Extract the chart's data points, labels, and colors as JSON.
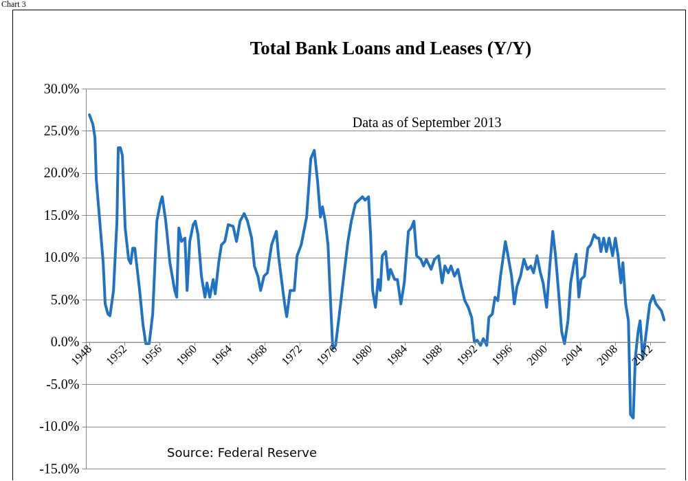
{
  "chart_data": {
    "type": "line",
    "title": "Total Bank Loans and Leases  (Y/Y)",
    "annotations": [
      "Chart 3",
      "Data as of September  2013",
      "Source: Federal Reserve"
    ],
    "x": [
      1948.0,
      1948.39,
      1948.63,
      1948.78,
      1949.18,
      1949.57,
      1949.8,
      1950.12,
      1950.35,
      1950.75,
      1951.14,
      1951.29,
      1951.53,
      1951.76,
      1952.08,
      1952.47,
      1952.71,
      1952.94,
      1953.18,
      1953.41,
      1953.73,
      1954.12,
      1954.43,
      1954.82,
      1955.22,
      1955.69,
      1956.08,
      1956.31,
      1956.71,
      1957.18,
      1957.73,
      1957.96,
      1958.2,
      1958.51,
      1958.9,
      1959.14,
      1959.45,
      1959.84,
      1960.08,
      1960.39,
      1960.78,
      1961.18,
      1961.41,
      1961.73,
      1962.12,
      1962.35,
      1962.75,
      1963.06,
      1963.45,
      1963.84,
      1964.39,
      1964.78,
      1965.18,
      1965.65,
      1966.04,
      1966.51,
      1966.82,
      1967.22,
      1967.53,
      1967.92,
      1968.31,
      1968.78,
      1969.33,
      1969.57,
      1969.96,
      1970.27,
      1970.51,
      1970.9,
      1971.37,
      1971.69,
      1972.16,
      1972.78,
      1973.25,
      1973.65,
      1974.04,
      1974.35,
      1974.59,
      1974.9,
      1975.22,
      1975.45,
      1975.76,
      1976.08,
      1976.47,
      1977.02,
      1977.49,
      1977.88,
      1978.35,
      1978.75,
      1979.14,
      1979.45,
      1979.84,
      1980.08,
      1980.31,
      1980.63,
      1980.94,
      1981.18,
      1981.41,
      1981.8,
      1982.12,
      1982.35,
      1982.82,
      1983.14,
      1983.53,
      1983.92,
      1984.39,
      1984.71,
      1985.02,
      1985.33,
      1985.8,
      1986.12,
      1986.43,
      1986.98,
      1987.37,
      1987.84,
      1988.24,
      1988.55,
      1988.94,
      1989.25,
      1989.65,
      1990.04,
      1990.43,
      1990.82,
      1991.22,
      1991.61,
      1991.92,
      1992.24,
      1992.63,
      1992.94,
      1993.33,
      1993.57,
      1993.96,
      1994.27,
      1994.59,
      1994.9,
      1995.45,
      1995.76,
      1996.16,
      1996.47,
      1996.78,
      1997.18,
      1997.57,
      1997.96,
      1998.35,
      1998.67,
      1999.06,
      1999.45,
      1999.76,
      2000.16,
      2000.55,
      2000.86,
      2001.18,
      2001.57,
      2001.88,
      2002.2,
      2002.59,
      2002.9,
      2003.29,
      2003.53,
      2003.84,
      2004.08,
      2004.47,
      2004.86,
      2005.18,
      2005.57,
      2005.88,
      2006.12,
      2006.35,
      2006.67,
      2006.98,
      2007.29,
      2007.69,
      2008.0,
      2008.31,
      2008.63,
      2008.86,
      2009.18,
      2009.49,
      2009.73,
      2010.04,
      2010.27,
      2010.59,
      2010.82,
      2011.14,
      2011.53,
      2011.92,
      2012.31,
      2012.63,
      2012.94,
      2013.25,
      2013.57
    ],
    "series": [
      {
        "color": "#1f72c4",
        "values": [
          26.9,
          25.8,
          24.2,
          19.3,
          14.3,
          9.4,
          4.5,
          3.3,
          3.1,
          6.1,
          14.3,
          23.0,
          23.0,
          22.1,
          13.5,
          9.8,
          9.3,
          11.1,
          11.1,
          9.0,
          6.1,
          2.0,
          -0.2,
          -0.2,
          3.3,
          14.3,
          16.4,
          17.2,
          14.3,
          9.4,
          6.1,
          5.3,
          13.5,
          11.9,
          12.3,
          6.1,
          11.9,
          13.9,
          14.3,
          12.7,
          7.8,
          5.3,
          7.0,
          5.3,
          7.4,
          5.7,
          9.4,
          11.5,
          11.9,
          13.9,
          13.7,
          11.9,
          14.3,
          15.2,
          14.3,
          12.3,
          9.0,
          7.8,
          6.1,
          7.8,
          8.2,
          11.5,
          13.1,
          10.2,
          7.0,
          4.5,
          3.0,
          6.1,
          6.1,
          10.2,
          11.5,
          14.8,
          21.7,
          22.7,
          18.9,
          14.8,
          16.0,
          14.3,
          11.5,
          6.1,
          -0.8,
          -0.4,
          2.9,
          7.8,
          11.9,
          14.3,
          16.4,
          16.8,
          17.2,
          16.8,
          17.2,
          12.7,
          6.1,
          4.1,
          7.4,
          6.1,
          10.2,
          10.7,
          7.4,
          8.6,
          7.4,
          7.4,
          4.5,
          7.0,
          13.1,
          13.5,
          14.3,
          10.2,
          9.8,
          9.0,
          9.8,
          8.6,
          9.8,
          10.2,
          7.0,
          9.0,
          8.2,
          9.0,
          7.8,
          8.6,
          6.6,
          4.9,
          4.1,
          2.9,
          0.0,
          0.2,
          -0.4,
          0.4,
          -0.4,
          2.9,
          3.3,
          5.3,
          4.9,
          7.8,
          11.9,
          10.2,
          7.8,
          4.5,
          6.6,
          7.8,
          9.8,
          8.6,
          9.0,
          8.2,
          10.2,
          8.2,
          7.0,
          4.1,
          9.4,
          13.1,
          10.2,
          5.3,
          1.2,
          -0.2,
          2.5,
          7.0,
          9.4,
          10.4,
          5.3,
          7.4,
          7.8,
          11.1,
          11.5,
          12.7,
          12.3,
          12.3,
          10.7,
          12.3,
          10.7,
          12.3,
          10.2,
          12.3,
          10.2,
          7.0,
          9.4,
          4.5,
          2.5,
          -8.6,
          -9.0,
          -2.0,
          1.2,
          2.5,
          -2.0,
          1.2,
          4.5,
          5.5,
          4.5,
          4.1,
          3.7,
          2.6
        ]
      }
    ],
    "xlim": [
      1947.6,
      2013.7
    ],
    "xticks": [
      1948,
      1952,
      1956,
      1960,
      1964,
      1968,
      1972,
      1976,
      1980,
      1984,
      1988,
      1992,
      1996,
      2000,
      2004,
      2008,
      2012
    ],
    "ylim": [
      -15,
      30
    ],
    "yticks": [
      {
        "value": -15,
        "label": "-15.0%"
      },
      {
        "value": -10,
        "label": "-10.0%"
      },
      {
        "value": -5,
        "label": "-5.0%"
      },
      {
        "value": 0,
        "label": "0.0%"
      },
      {
        "value": 5,
        "label": "5.0%"
      },
      {
        "value": 10,
        "label": "10.0%"
      },
      {
        "value": 15,
        "label": "15.0%"
      },
      {
        "value": 20,
        "label": "20.0%"
      },
      {
        "value": 25,
        "label": "25.0%"
      },
      {
        "value": 30,
        "label": "30.0%"
      }
    ],
    "grid": "y",
    "line_style": "solid"
  }
}
